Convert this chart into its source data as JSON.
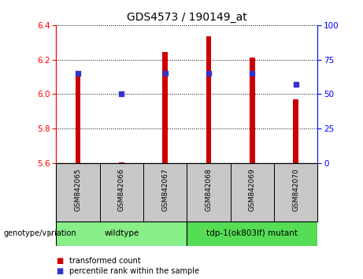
{
  "title": "GDS4573 / 190149_at",
  "samples": [
    "GSM842065",
    "GSM842066",
    "GSM842067",
    "GSM842068",
    "GSM842069",
    "GSM842070"
  ],
  "transformed_counts": [
    6.13,
    5.605,
    6.245,
    6.335,
    6.21,
    5.97
  ],
  "percentile_ranks": [
    65,
    50,
    65,
    65,
    65,
    57
  ],
  "bar_bottom": 5.6,
  "ylim_left": [
    5.6,
    6.4
  ],
  "ylim_right": [
    0,
    100
  ],
  "yticks_left": [
    5.6,
    5.8,
    6.0,
    6.2,
    6.4
  ],
  "yticks_right": [
    0,
    25,
    50,
    75,
    100
  ],
  "bar_color": "#cc0000",
  "dot_color": "#3333cc",
  "groups": [
    {
      "label": "wildtype",
      "samples_idx": [
        0,
        1,
        2
      ],
      "color": "#88ee88"
    },
    {
      "label": "tdp-1(ok803lf) mutant",
      "samples_idx": [
        3,
        4,
        5
      ],
      "color": "#55dd55"
    }
  ],
  "group_label": "genotype/variation",
  "legend_items": [
    {
      "label": "transformed count",
      "color": "#cc0000"
    },
    {
      "label": "percentile rank within the sample",
      "color": "#3333cc"
    }
  ],
  "bg_color_plot": "#ffffff",
  "bg_color_sample_row": "#c8c8c8",
  "bar_width": 0.12,
  "title_fontsize": 10,
  "tick_fontsize": 7.5,
  "sample_fontsize": 6.5,
  "group_fontsize": 7.5,
  "legend_fontsize": 7
}
